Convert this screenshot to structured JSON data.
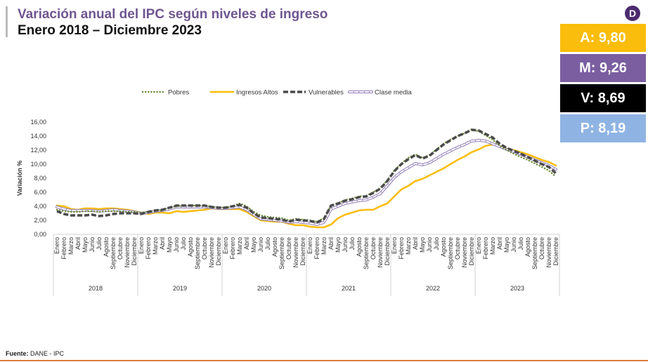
{
  "header": {
    "title": "Variación anual del IPC según niveles de ingreso",
    "subtitle": "Enero 2018 – Diciembre 2023",
    "logo": "D"
  },
  "badges": [
    {
      "label": "A: 9,80",
      "color": "#fbbd0b"
    },
    {
      "label": "M: 9,26",
      "color": "#7a5ea0"
    },
    {
      "label": "V: 8,69",
      "color": "#000000"
    },
    {
      "label": "P: 8,19",
      "color": "#8fb4e3"
    }
  ],
  "footer": {
    "label": "Fuente:",
    "text": " DANE - IPC"
  },
  "chart_data": {
    "type": "line",
    "title": "",
    "xlabel": "",
    "ylabel": "Variación %",
    "ylim": [
      0,
      16
    ],
    "yticks": [
      "0,00",
      "2,00",
      "4,00",
      "6,00",
      "8,00",
      "10,00",
      "12,00",
      "14,00",
      "16,00"
    ],
    "grid": false,
    "legend": "top",
    "years": [
      "2018",
      "2019",
      "2020",
      "2021",
      "2022",
      "2023"
    ],
    "months": [
      "Enero",
      "Febrero",
      "Marzo",
      "Abril",
      "Mayo",
      "Junio",
      "Julio",
      "Agosto",
      "Septiembre",
      "Octubre",
      "Noviembre",
      "Diciembre"
    ],
    "series": [
      {
        "name": "Pobres",
        "color": "#6f8f3a",
        "style": "dotted",
        "values": [
          3.5,
          3.3,
          3.2,
          3.2,
          3.3,
          3.3,
          3.2,
          3.3,
          3.3,
          3.3,
          3.2,
          3.2,
          3.1,
          3.2,
          3.3,
          3.5,
          3.8,
          4.0,
          4.1,
          4.1,
          4.1,
          4.1,
          3.9,
          3.8,
          3.8,
          4.0,
          4.4,
          4.0,
          3.2,
          2.7,
          2.5,
          2.4,
          2.3,
          2.0,
          2.2,
          2.1,
          2.0,
          1.8,
          2.3,
          4.1,
          4.4,
          4.9,
          5.1,
          5.4,
          5.5,
          6.0,
          6.6,
          7.7,
          9.1,
          10.1,
          10.9,
          11.4,
          10.9,
          11.3,
          12.1,
          12.9,
          13.5,
          14.0,
          14.4,
          14.9,
          14.7,
          14.1,
          13.5,
          12.6,
          12.0,
          11.5,
          11.0,
          10.6,
          10.1,
          9.6,
          9.1,
          8.19
        ]
      },
      {
        "name": "Ingresos Altos",
        "color": "#fbbd0b",
        "style": "solid",
        "values": [
          4.1,
          4.0,
          3.6,
          3.5,
          3.7,
          3.7,
          3.6,
          3.7,
          3.7,
          3.6,
          3.5,
          3.3,
          3.1,
          2.9,
          3.1,
          3.1,
          3.0,
          3.3,
          3.2,
          3.3,
          3.4,
          3.5,
          3.7,
          3.6,
          3.6,
          3.6,
          3.6,
          3.2,
          2.6,
          2.0,
          1.9,
          1.8,
          1.8,
          1.5,
          1.3,
          1.3,
          1.1,
          1.0,
          1.0,
          1.4,
          2.3,
          2.8,
          3.1,
          3.4,
          3.5,
          3.5,
          4.0,
          4.4,
          5.4,
          6.4,
          6.9,
          7.6,
          7.9,
          8.4,
          8.9,
          9.4,
          10.0,
          10.6,
          11.1,
          11.7,
          12.1,
          12.6,
          12.8,
          12.6,
          12.2,
          12.0,
          11.7,
          11.4,
          11.0,
          10.6,
          10.3,
          9.8
        ]
      },
      {
        "name": "Vulnerables",
        "color": "#4a4a4a",
        "style": "dashed",
        "values": [
          3.3,
          2.9,
          2.7,
          2.7,
          2.7,
          2.8,
          2.6,
          2.7,
          2.9,
          3.0,
          3.0,
          3.0,
          2.9,
          3.2,
          3.4,
          3.5,
          3.8,
          4.1,
          4.1,
          4.1,
          4.1,
          4.1,
          3.9,
          3.8,
          3.8,
          4.0,
          4.2,
          3.8,
          3.0,
          2.4,
          2.3,
          2.2,
          2.1,
          1.8,
          2.1,
          2.0,
          1.9,
          1.7,
          2.2,
          4.1,
          4.4,
          4.8,
          5.0,
          5.3,
          5.4,
          5.9,
          6.5,
          7.6,
          9.0,
          10.0,
          10.7,
          11.3,
          10.8,
          11.2,
          12.0,
          12.8,
          13.4,
          14.0,
          14.4,
          14.9,
          14.8,
          14.3,
          13.8,
          12.9,
          12.3,
          11.9,
          11.5,
          11.0,
          10.5,
          10.0,
          9.6,
          8.69
        ]
      },
      {
        "name": "Clase media",
        "color": "#8f7bb8",
        "style": "double-dash",
        "values": [
          3.9,
          3.6,
          3.4,
          3.4,
          3.4,
          3.4,
          3.3,
          3.4,
          3.5,
          3.4,
          3.3,
          3.2,
          3.0,
          3.1,
          3.3,
          3.4,
          3.6,
          3.9,
          3.9,
          3.9,
          3.9,
          3.9,
          3.8,
          3.7,
          3.7,
          3.8,
          3.9,
          3.5,
          2.8,
          2.2,
          2.1,
          2.0,
          1.9,
          1.7,
          1.8,
          1.7,
          1.6,
          1.4,
          1.7,
          3.6,
          4.0,
          4.4,
          4.6,
          4.8,
          4.9,
          5.3,
          5.8,
          6.9,
          8.1,
          8.9,
          9.5,
          10.1,
          9.9,
          10.2,
          10.8,
          11.4,
          11.9,
          12.4,
          12.8,
          13.3,
          13.4,
          13.3,
          12.9,
          12.5,
          12.1,
          11.8,
          11.4,
          11.0,
          10.6,
          10.2,
          9.8,
          9.26
        ]
      }
    ]
  }
}
